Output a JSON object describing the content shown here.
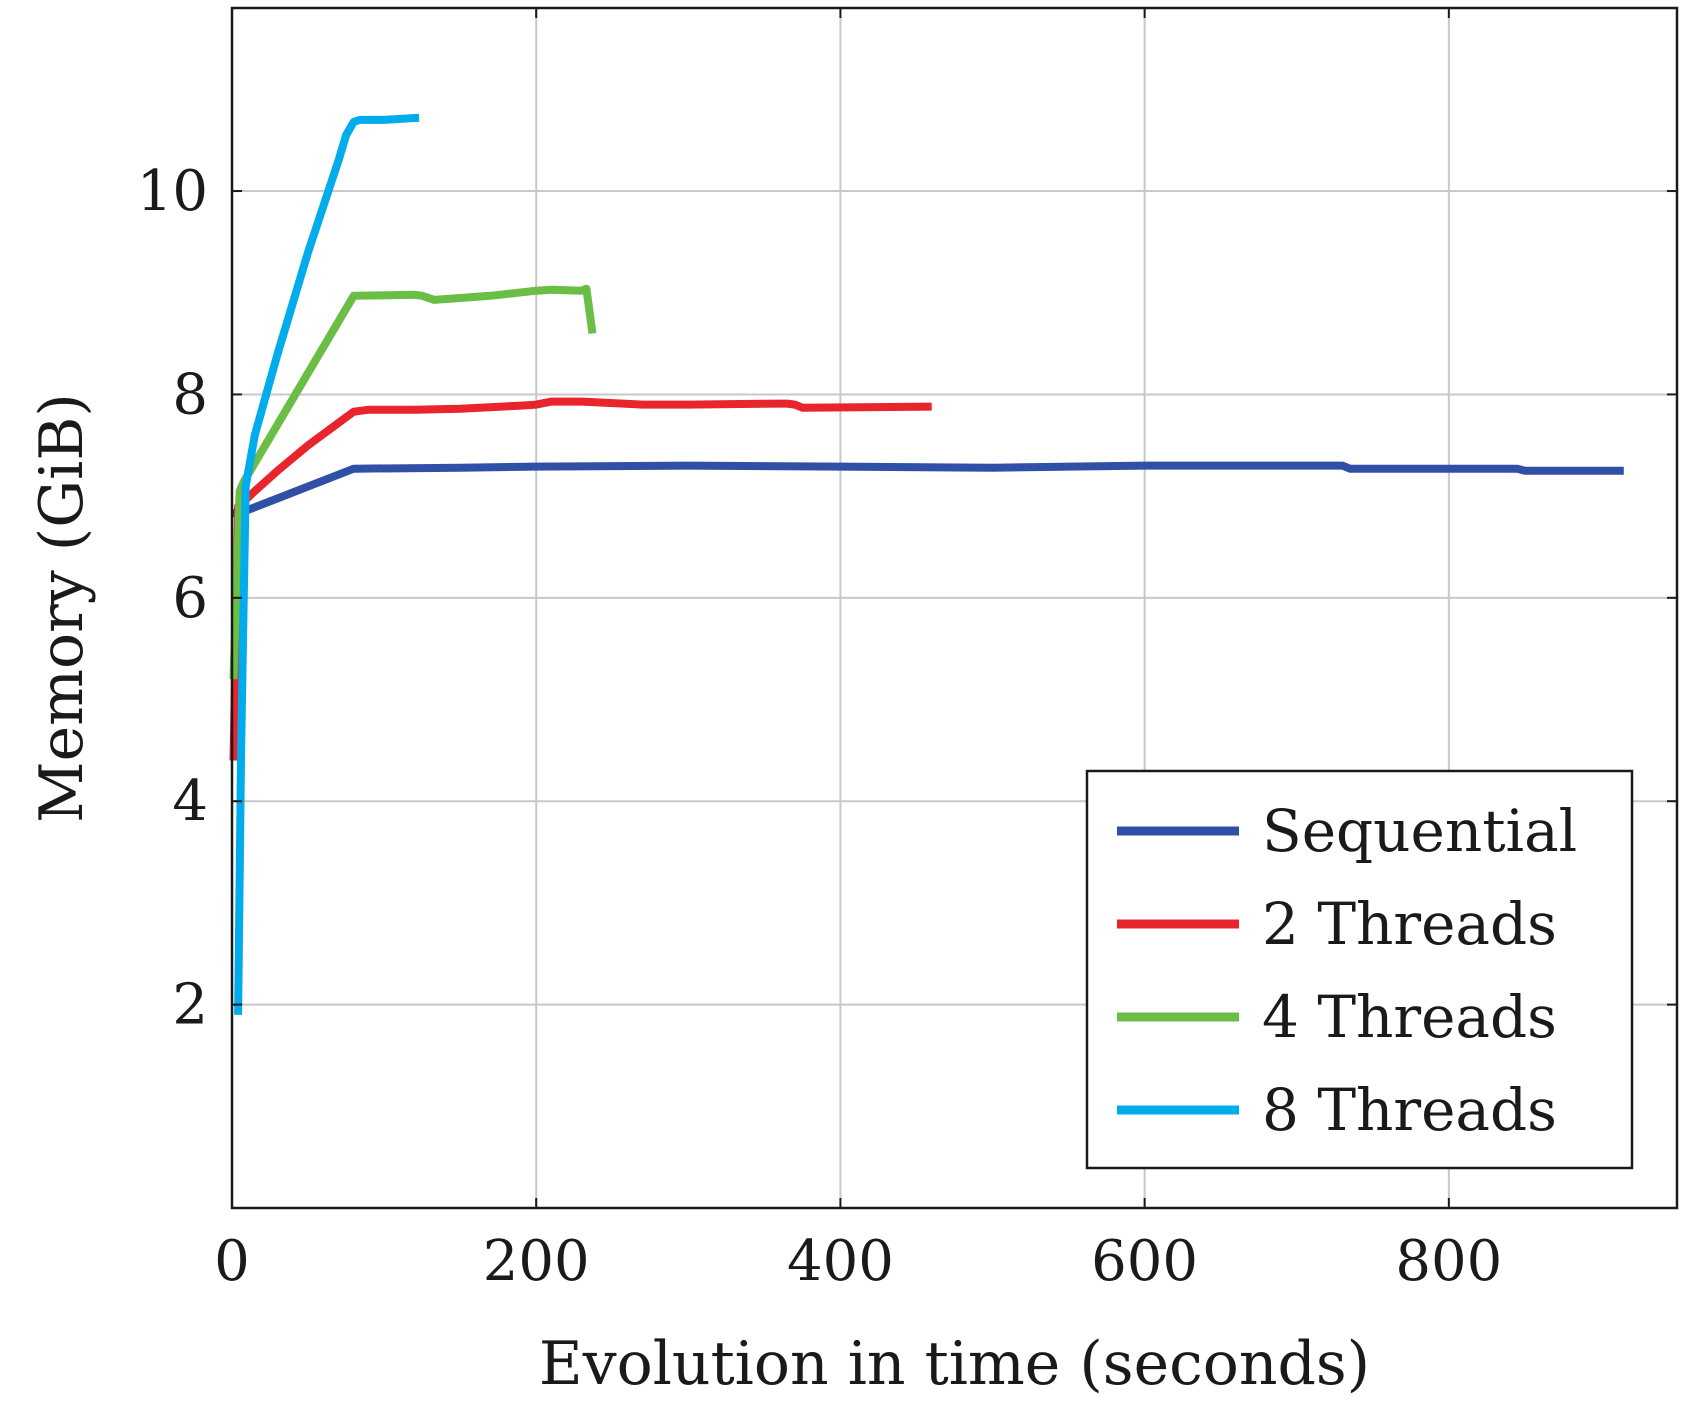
{
  "chart_data": {
    "type": "line",
    "title": "",
    "xlabel": "Evolution in time (seconds)",
    "ylabel": "Memory (GiB)",
    "xlim": [
      0,
      950
    ],
    "ylim": [
      0,
      11.8
    ],
    "xticks": [
      0,
      200,
      400,
      600,
      800
    ],
    "yticks": [
      2,
      4,
      6,
      8,
      10
    ],
    "grid": true,
    "legend_position": "bottom-right",
    "series": [
      {
        "name": "Sequential",
        "color": "#3050a8",
        "x": [
          0,
          8,
          80,
          150,
          200,
          300,
          400,
          500,
          600,
          730,
          735,
          845,
          850,
          915
        ],
        "y": [
          6.83,
          6.85,
          7.27,
          7.28,
          7.29,
          7.3,
          7.29,
          7.28,
          7.3,
          7.3,
          7.27,
          7.27,
          7.25,
          7.25
        ]
      },
      {
        "name": "2 Threads",
        "color": "#e8242d",
        "x": [
          1,
          2,
          4,
          8,
          15,
          30,
          50,
          70,
          80,
          90,
          120,
          150,
          190,
          200,
          210,
          230,
          270,
          300,
          360,
          365,
          370,
          375,
          460
        ],
        "y": [
          4.4,
          5.2,
          6.9,
          6.95,
          7.05,
          7.25,
          7.5,
          7.72,
          7.83,
          7.85,
          7.85,
          7.86,
          7.89,
          7.9,
          7.93,
          7.93,
          7.9,
          7.9,
          7.91,
          7.91,
          7.9,
          7.87,
          7.88
        ]
      },
      {
        "name": "4 Threads",
        "color": "#6abd45",
        "x": [
          1,
          5,
          8,
          80,
          120,
          125,
          133,
          170,
          200,
          210,
          230,
          233,
          237
        ],
        "y": [
          5.2,
          7.05,
          7.15,
          8.97,
          8.98,
          8.97,
          8.93,
          8.97,
          9.02,
          9.03,
          9.02,
          9.04,
          8.6
        ]
      },
      {
        "name": "8 Threads",
        "color": "#00acec",
        "x": [
          4,
          6,
          9,
          15,
          30,
          50,
          70,
          75,
          80,
          84,
          100,
          123
        ],
        "y": [
          1.9,
          4.5,
          7.1,
          7.6,
          8.4,
          9.4,
          10.3,
          10.55,
          10.68,
          10.7,
          10.7,
          10.72
        ]
      }
    ]
  }
}
